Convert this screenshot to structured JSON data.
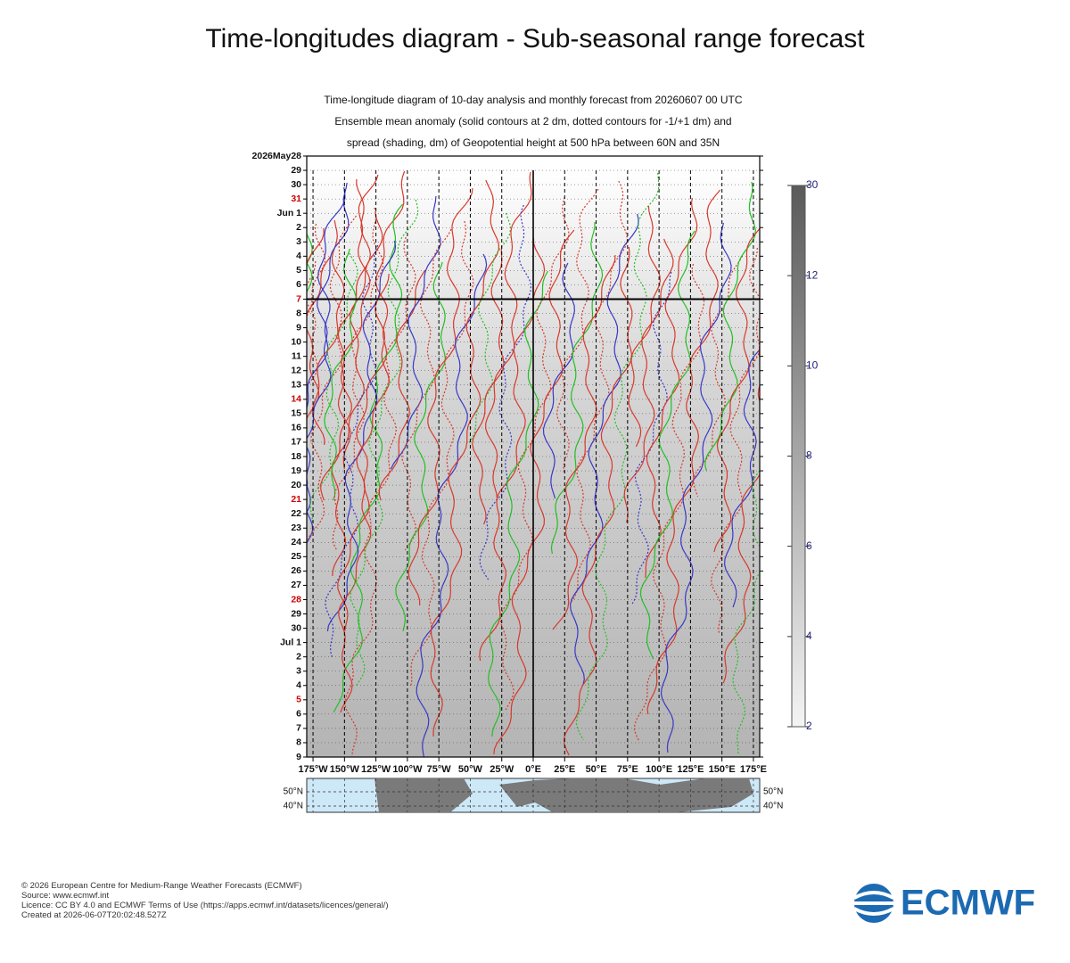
{
  "page_title": "Time-longitudes diagram - Sub-seasonal range forecast",
  "chart_data": {
    "type": "contour",
    "title_lines": [
      "Time-longitude diagram of 10-day analysis and monthly forecast from 20260607 00 UTC",
      "Ensemble mean anomaly (solid contours at 2 dm, dotted contours for -1/+1 dm) and",
      "spread (shading, dm) of Geopotential height at 500 hPa between 60N and 35N"
    ],
    "categories": [
      "2026May28",
      "29",
      "30",
      "31",
      "Jun 1",
      "2",
      "3",
      "4",
      "5",
      "6",
      "7",
      "8",
      "9",
      "10",
      "11",
      "12",
      "13",
      "14",
      "15",
      "16",
      "17",
      "18",
      "19",
      "20",
      "21",
      "22",
      "23",
      "24",
      "25",
      "26",
      "27",
      "28",
      "29",
      "30",
      "Jul 1",
      "2",
      "3",
      "4",
      "5",
      "6",
      "7",
      "8",
      "9"
    ],
    "xlim": [
      -180,
      180
    ],
    "xticks": [
      {
        "value": -175,
        "label": "175°W"
      },
      {
        "value": -150,
        "label": "150°W"
      },
      {
        "value": -125,
        "label": "125°W"
      },
      {
        "value": -100,
        "label": "100°W"
      },
      {
        "value": -75,
        "label": "75°W"
      },
      {
        "value": -50,
        "label": "50°W"
      },
      {
        "value": -25,
        "label": "25°W"
      },
      {
        "value": 0,
        "label": "0°E"
      },
      {
        "value": 25,
        "label": "25°E"
      },
      {
        "value": 50,
        "label": "50°E"
      },
      {
        "value": 75,
        "label": "75°E"
      },
      {
        "value": 100,
        "label": "100°E"
      },
      {
        "value": 125,
        "label": "125°E"
      },
      {
        "value": 150,
        "label": "150°E"
      },
      {
        "value": 175,
        "label": "175°E"
      }
    ],
    "colorbar_ticks": [
      2,
      4,
      6,
      8,
      10,
      12,
      30
    ],
    "map_labels": [
      "50°N",
      "40°N"
    ]
  },
  "footer": [
    "© 2026 European Centre for Medium-Range Weather Forecasts (ECMWF)",
    "Source: www.ecmwf.int",
    "Licence: CC BY 4.0 and ECMWF Terms of Use (https://apps.ecmwf.int/datasets/licences/general/)",
    "Created at 2026-06-07T20:02:48.527Z"
  ],
  "logo": "ECMWF"
}
